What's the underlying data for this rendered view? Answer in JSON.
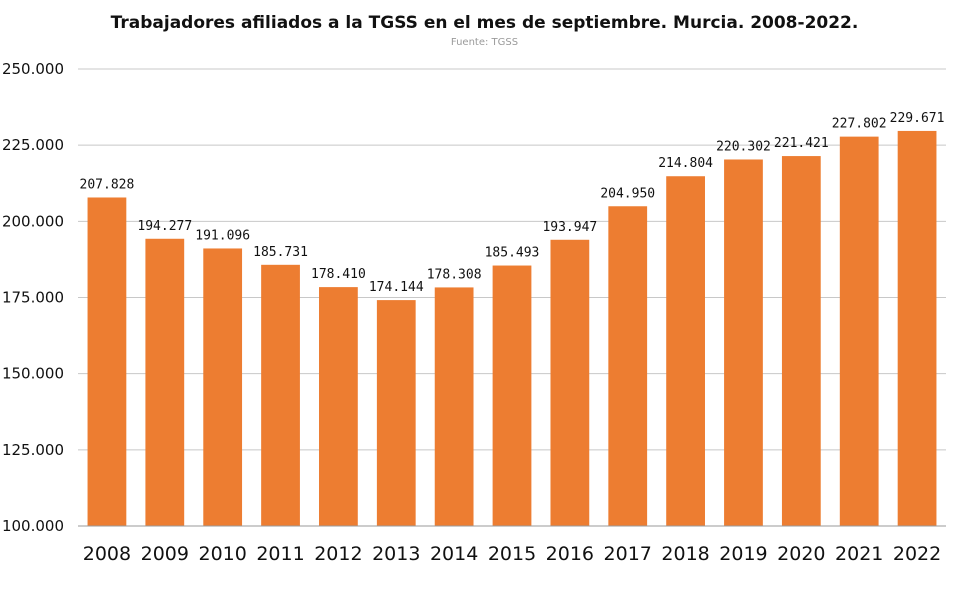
{
  "chart_data": {
    "type": "bar",
    "title": "Trabajadores afiliados a la TGSS en el mes de septiembre. Murcia. 2008-2022.",
    "subtitle": "Fuente: TGSS",
    "xlabel": "",
    "ylabel": "",
    "ylim": [
      100000,
      250000
    ],
    "yticks": [
      100000,
      125000,
      150000,
      175000,
      200000,
      225000,
      250000
    ],
    "ytick_labels": [
      "100.000",
      "125.000",
      "150.000",
      "175.000",
      "200.000",
      "225.000",
      "250.000"
    ],
    "categories": [
      "2008",
      "2009",
      "2010",
      "2011",
      "2012",
      "2013",
      "2014",
      "2015",
      "2016",
      "2017",
      "2018",
      "2019",
      "2020",
      "2021",
      "2022"
    ],
    "values": [
      207828,
      194277,
      191096,
      185731,
      178410,
      174144,
      178308,
      185493,
      193947,
      204950,
      214804,
      220302,
      221421,
      227802,
      229671
    ],
    "value_labels": [
      "207.828",
      "194.277",
      "191.096",
      "185.731",
      "178.410",
      "174.144",
      "178.308",
      "185.493",
      "193.947",
      "204.950",
      "214.804",
      "220.302",
      "221.421",
      "227.802",
      "229.671"
    ],
    "bar_color": "#ED7D31",
    "grid": true,
    "legend": "none"
  }
}
